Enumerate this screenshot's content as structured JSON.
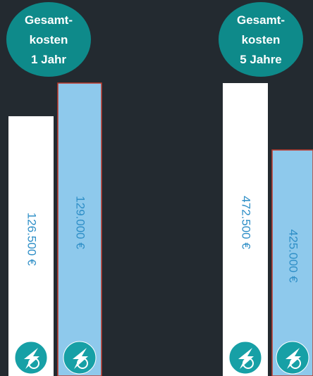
{
  "chart_data": [
    {
      "type": "bar",
      "title": [
        "Gesamt-",
        "kosten",
        "1 Jahr"
      ],
      "categories": [
        null,
        null
      ],
      "values": [
        126500,
        129000
      ],
      "value_labels": [
        "126.500 €",
        "129.000 €"
      ],
      "colors": [
        "#ffffff",
        "#8ec9ec"
      ],
      "ylim": [
        106900,
        129000
      ]
    },
    {
      "type": "bar",
      "title": [
        "Gesamt-",
        "kosten",
        "5 Jahre"
      ],
      "categories": [
        null,
        null
      ],
      "values": [
        472500,
        425000
      ],
      "value_labels": [
        "472.500 €",
        "425.000 €"
      ],
      "colors": [
        "#ffffff",
        "#8ec9ec"
      ],
      "ylim": [
        264500,
        472500
      ]
    }
  ]
}
